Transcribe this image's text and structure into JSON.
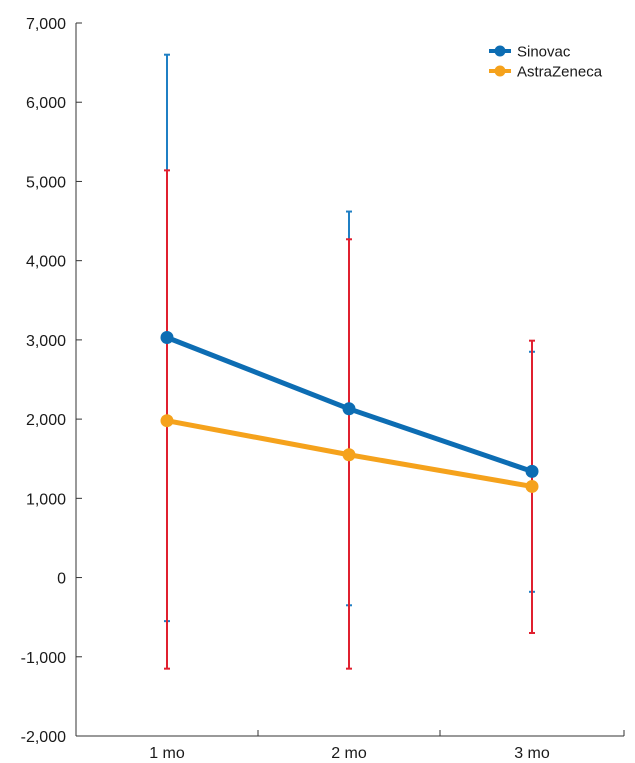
{
  "chart_data": {
    "type": "line",
    "title": "",
    "xlabel": "",
    "ylabel": "",
    "categories": [
      "1 mo",
      "2 mo",
      "3 mo"
    ],
    "ylim": [
      -2000,
      7000
    ],
    "yticks": [
      -2000,
      -1000,
      0,
      1000,
      2000,
      3000,
      4000,
      5000,
      6000,
      7000
    ],
    "ytick_labels": [
      "-2,000",
      "-1,000",
      "0",
      "1,000",
      "2,000",
      "3,000",
      "4,000",
      "5,000",
      "6,000",
      "7,000"
    ],
    "grid": false,
    "legend_position": "top-right",
    "series": [
      {
        "name": "Sinovac",
        "color": "#0d6db3",
        "error_bar_color": "#1f7fc4",
        "values": [
          3030,
          2130,
          1340
        ],
        "error_upper": [
          6600,
          4620,
          2850
        ],
        "error_lower": [
          -550,
          -350,
          -180
        ]
      },
      {
        "name": "AstraZeneca",
        "color": "#f5a21c",
        "error_bar_color": "#e0202f",
        "values": [
          1980,
          1550,
          1150
        ],
        "error_upper": [
          5140,
          4270,
          2990
        ],
        "error_lower": [
          -1150,
          -1150,
          -700
        ]
      }
    ]
  }
}
